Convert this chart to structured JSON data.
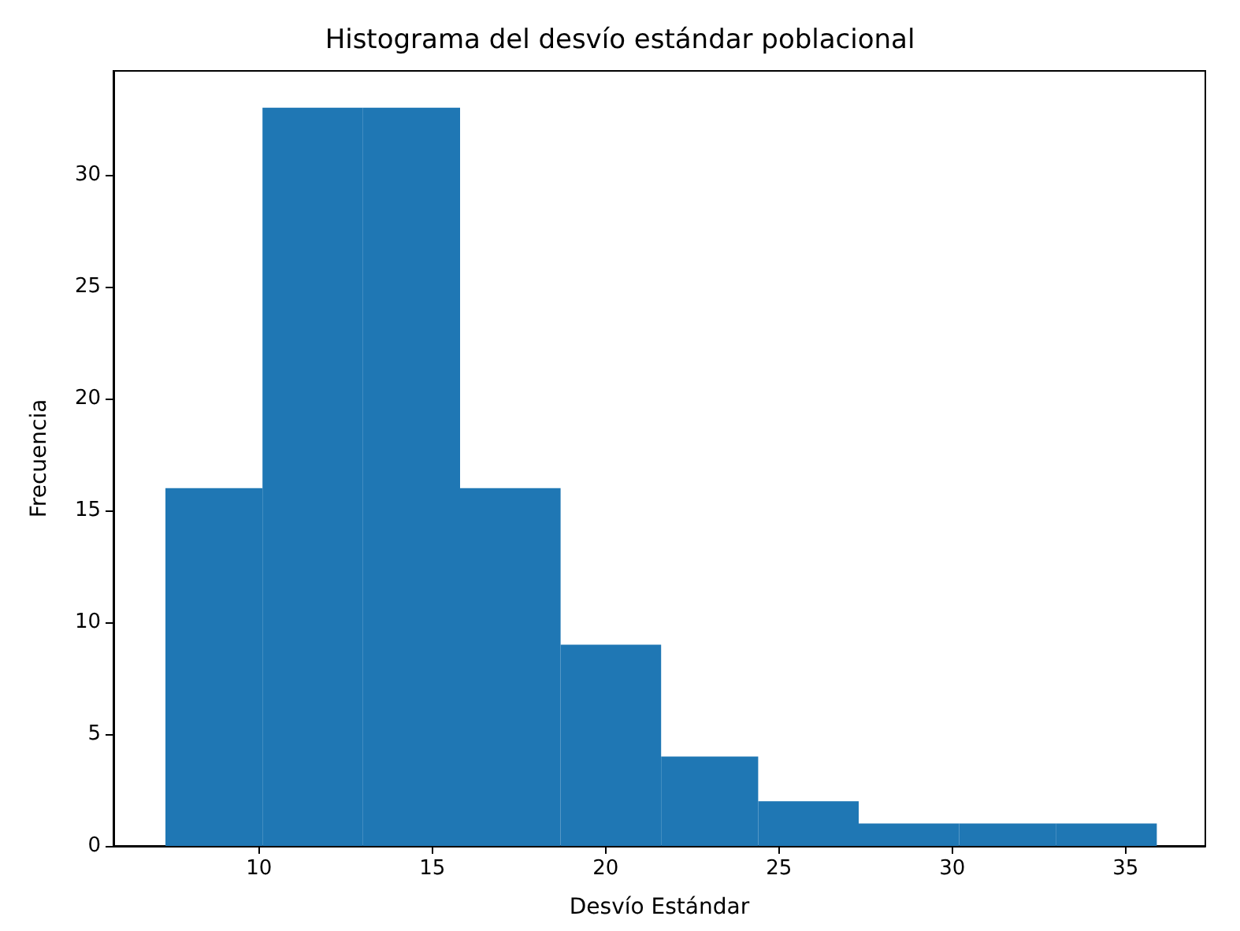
{
  "chart_data": {
    "type": "histogram",
    "title": "Histograma del desvío estándar poblacional",
    "xlabel": "Desvío Estándar",
    "ylabel": "Frecuencia",
    "bins": [
      7.3,
      10.1,
      13.0,
      15.8,
      18.7,
      21.6,
      24.4,
      27.3,
      30.2,
      33.0,
      35.9
    ],
    "values": [
      16,
      33,
      33,
      16,
      9,
      4,
      2,
      1,
      1,
      1
    ],
    "color": "#1f77b4",
    "xlim": [
      5.8,
      37.3
    ],
    "xticks": [
      10,
      15,
      20,
      25,
      30,
      35
    ],
    "ylim": [
      0,
      34.65
    ],
    "yticks": [
      0,
      5,
      10,
      15,
      20,
      25,
      30
    ],
    "grid": false
  }
}
